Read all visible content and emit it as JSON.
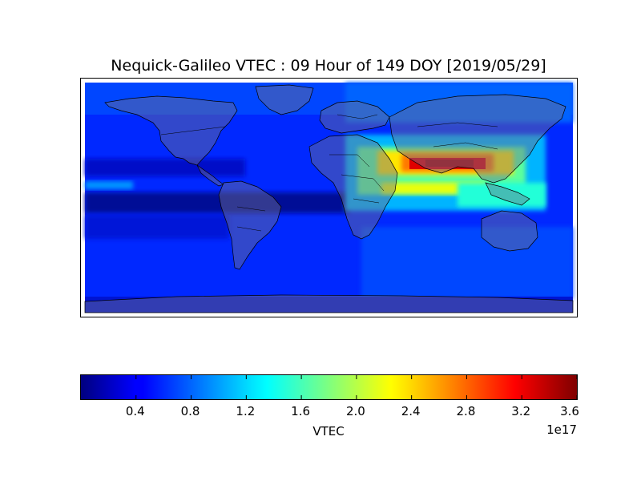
{
  "title": "Nequick-Galileo VTEC : 09 Hour of 149 DOY [2019/05/29]",
  "map": {
    "projection": "equirectangular",
    "lon_range": [
      -180,
      180
    ],
    "lat_range": [
      -90,
      90
    ],
    "quantity": "VTEC",
    "hour": 9,
    "doy": 149,
    "date": "2019/05/29",
    "colormap": "jet",
    "features": [
      "coastlines",
      "country-borders",
      "grey-land-overlay"
    ],
    "field_notes": {
      "maximum_region": "south asia / arabian sea band near 20N",
      "maximum_value": 3.6e+17
    }
  },
  "colorbar": {
    "label": "VTEC",
    "exponent": "1e17",
    "vmin": 0.0,
    "vmax": 3.6,
    "ticks": [
      "0.4",
      "0.8",
      "1.2",
      "1.6",
      "2.0",
      "2.4",
      "2.8",
      "3.2",
      "3.6"
    ],
    "tick_values": [
      0.4,
      0.8,
      1.2,
      1.6,
      2.0,
      2.4,
      2.8,
      3.2,
      3.6
    ]
  }
}
